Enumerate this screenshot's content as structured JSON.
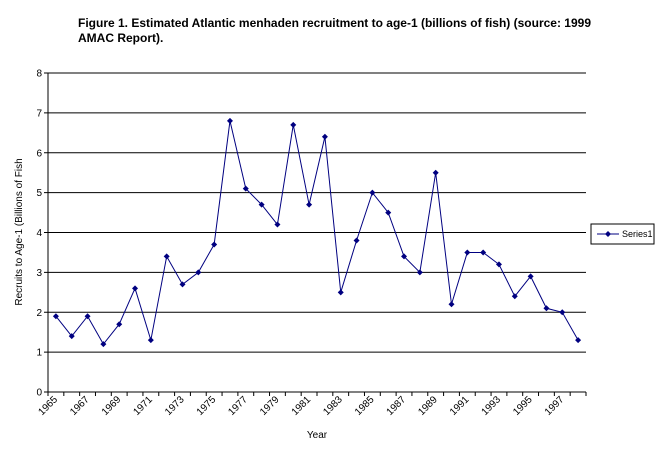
{
  "chart_data": {
    "type": "line",
    "title_lines": [
      "Figure 1. Estimated Atlantic menhaden recruitment to age-1 (billions of fish) (source:  1999",
      "AMAC Report)."
    ],
    "xlabel": "Year",
    "ylabel": "Recruits to Age-1 (Billions of Fish",
    "ylim": [
      0,
      8
    ],
    "yticks": [
      "0",
      "1",
      "2",
      "3",
      "4",
      "5",
      "6",
      "7",
      "8"
    ],
    "xtick_labels": [
      "1965",
      "1967",
      "1969",
      "1971",
      "1973",
      "1975",
      "1977",
      "1979",
      "1981",
      "1983",
      "1985",
      "1987",
      "1989",
      "1991",
      "1993",
      "1995",
      "1997"
    ],
    "x": [
      1965,
      1966,
      1967,
      1968,
      1969,
      1970,
      1971,
      1972,
      1973,
      1974,
      1975,
      1976,
      1977,
      1978,
      1979,
      1980,
      1981,
      1982,
      1983,
      1984,
      1985,
      1986,
      1987,
      1988,
      1989,
      1990,
      1991,
      1992,
      1993,
      1994,
      1995,
      1996,
      1997,
      1998
    ],
    "series": [
      {
        "name": "Series1",
        "color": "#000080",
        "values": [
          1.9,
          1.4,
          1.9,
          1.2,
          1.7,
          2.6,
          1.3,
          3.4,
          2.7,
          3.0,
          3.7,
          6.8,
          5.1,
          4.7,
          4.2,
          6.7,
          4.7,
          6.4,
          2.5,
          3.8,
          5.0,
          4.5,
          3.4,
          3.0,
          5.5,
          2.2,
          3.5,
          3.5,
          3.2,
          2.4,
          2.9,
          2.1,
          2.0,
          1.3
        ]
      }
    ],
    "grid": "horizontal",
    "legend": "right"
  }
}
